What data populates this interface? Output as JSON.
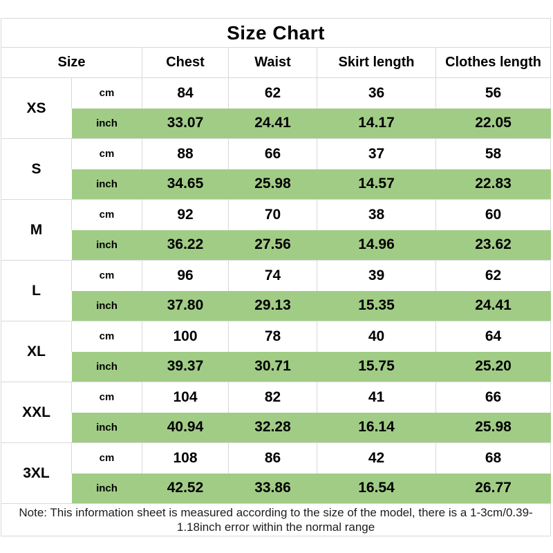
{
  "chart_data": {
    "type": "table",
    "title": "Size Chart",
    "columns": [
      "Size",
      "Chest",
      "Waist",
      "Skirt length",
      "Clothes length"
    ],
    "unit_labels": [
      "cm",
      "inch"
    ],
    "sizes": [
      {
        "size": "XS",
        "cm": [
          "84",
          "62",
          "36",
          "56"
        ],
        "inch": [
          "33.07",
          "24.41",
          "14.17",
          "22.05"
        ]
      },
      {
        "size": "S",
        "cm": [
          "88",
          "66",
          "37",
          "58"
        ],
        "inch": [
          "34.65",
          "25.98",
          "14.57",
          "22.83"
        ]
      },
      {
        "size": "M",
        "cm": [
          "92",
          "70",
          "38",
          "60"
        ],
        "inch": [
          "36.22",
          "27.56",
          "14.96",
          "23.62"
        ]
      },
      {
        "size": "L",
        "cm": [
          "96",
          "74",
          "39",
          "62"
        ],
        "inch": [
          "37.80",
          "29.13",
          "15.35",
          "24.41"
        ]
      },
      {
        "size": "XL",
        "cm": [
          "100",
          "78",
          "40",
          "64"
        ],
        "inch": [
          "39.37",
          "30.71",
          "15.75",
          "25.20"
        ]
      },
      {
        "size": "XXL",
        "cm": [
          "104",
          "82",
          "41",
          "66"
        ],
        "inch": [
          "40.94",
          "32.28",
          "16.14",
          "25.98"
        ]
      },
      {
        "size": "3XL",
        "cm": [
          "108",
          "86",
          "42",
          "68"
        ],
        "inch": [
          "42.52",
          "33.86",
          "16.54",
          "26.77"
        ]
      }
    ],
    "note": "Note: This information sheet is measured according to the size of the model, there is a 1-3cm/0.39-1.18inch error within the normal range"
  },
  "colors": {
    "highlight_green": "#a1cc86",
    "border": "#d8d8d8",
    "text": "#000000",
    "background": "#ffffff"
  }
}
